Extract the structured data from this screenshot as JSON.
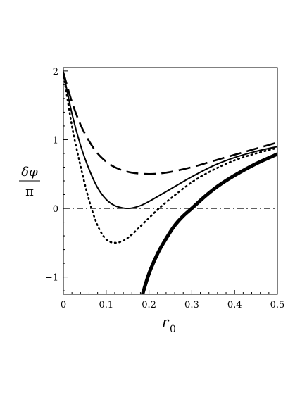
{
  "chart_data": {
    "type": "line",
    "xlabel_base": "r",
    "xlabel_sub": "0",
    "ylabel_num": "δφ",
    "ylabel_den": "π",
    "xlim": [
      0,
      0.5
    ],
    "ylim": [
      -1.25,
      2.05
    ],
    "xticks": [
      0,
      0.1,
      0.2,
      0.3,
      0.4,
      0.5
    ],
    "xtick_labels": [
      "0",
      "0.1",
      "0.2",
      "0.3",
      "0.4",
      "0.5"
    ],
    "yticks": [
      -1,
      0,
      1,
      2
    ],
    "ytick_labels": [
      "−1",
      "0",
      "1",
      "2"
    ],
    "grid": false,
    "legend": "none",
    "series": [
      {
        "style": "dashed",
        "x": [
          0,
          0.02,
          0.04,
          0.06,
          0.08,
          0.1,
          0.12,
          0.14,
          0.16,
          0.18,
          0.2,
          0.22,
          0.25,
          0.3,
          0.35,
          0.4,
          0.45,
          0.5
        ],
        "y": [
          1.98,
          1.55,
          1.22,
          0.98,
          0.8,
          0.68,
          0.6,
          0.55,
          0.52,
          0.505,
          0.5,
          0.505,
          0.53,
          0.6,
          0.69,
          0.78,
          0.87,
          0.96
        ]
      },
      {
        "style": "solid",
        "x": [
          0,
          0.02,
          0.04,
          0.06,
          0.08,
          0.1,
          0.12,
          0.14,
          0.15,
          0.16,
          0.18,
          0.2,
          0.25,
          0.3,
          0.35,
          0.4,
          0.45,
          0.5
        ],
        "y": [
          1.98,
          1.38,
          0.92,
          0.57,
          0.3,
          0.13,
          0.04,
          0.005,
          0.0,
          0.005,
          0.04,
          0.1,
          0.28,
          0.46,
          0.62,
          0.74,
          0.83,
          0.9
        ]
      },
      {
        "style": "dotted",
        "x": [
          0,
          0.02,
          0.04,
          0.06,
          0.08,
          0.1,
          0.12,
          0.14,
          0.16,
          0.18,
          0.2,
          0.22,
          0.25,
          0.3,
          0.35,
          0.4,
          0.45,
          0.5
        ],
        "y": [
          1.98,
          1.2,
          0.62,
          0.12,
          -0.25,
          -0.45,
          -0.5,
          -0.47,
          -0.38,
          -0.26,
          -0.14,
          -0.02,
          0.14,
          0.38,
          0.56,
          0.7,
          0.8,
          0.88
        ]
      },
      {
        "style": "thick",
        "x": [
          0.185,
          0.2,
          0.22,
          0.24,
          0.26,
          0.28,
          0.3,
          0.33,
          0.36,
          0.4,
          0.45,
          0.5
        ],
        "y": [
          -1.25,
          -0.95,
          -0.66,
          -0.44,
          -0.25,
          -0.11,
          0.0,
          0.17,
          0.32,
          0.48,
          0.65,
          0.79
        ]
      },
      {
        "style": "dashdot",
        "x": [
          0,
          0.5
        ],
        "y": [
          0,
          0
        ]
      }
    ]
  }
}
